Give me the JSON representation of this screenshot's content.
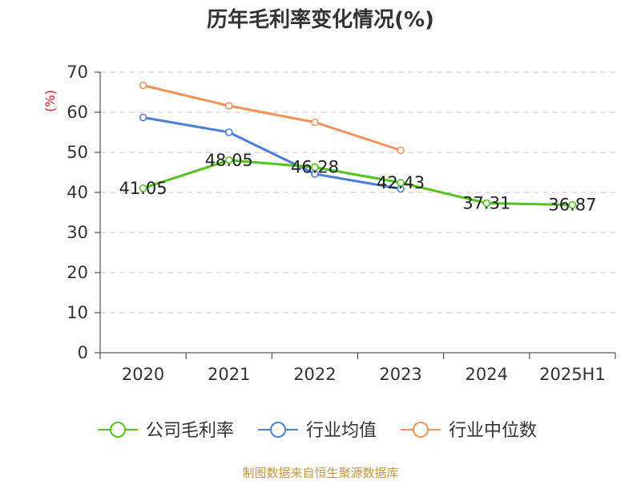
{
  "chart_data": {
    "type": "line",
    "title": "历年毛利率变化情况(%)",
    "ylabel": "(%)",
    "ylabel_color": "#e0141e",
    "categories": [
      "2020",
      "2021",
      "2022",
      "2023",
      "2024",
      "2025H1"
    ],
    "ylim": [
      0,
      70
    ],
    "yticks": [
      0,
      10,
      20,
      30,
      40,
      50,
      60,
      70
    ],
    "grid": true,
    "legend_position": "bottom",
    "series": [
      {
        "name": "公司毛利率",
        "color": "#52c41a",
        "values": [
          41.05,
          48.05,
          46.28,
          42.43,
          37.31,
          36.87
        ],
        "labels": [
          "41.05",
          "48.05",
          "46.28",
          "42.43",
          "37.31",
          "36.87"
        ]
      },
      {
        "name": "行业均值",
        "color": "#4a7fdc",
        "values": [
          58.7,
          55.0,
          44.6,
          40.9,
          null,
          null
        ]
      },
      {
        "name": "行业中位数",
        "color": "#f79158",
        "values": [
          66.7,
          61.6,
          57.5,
          50.5,
          null,
          null
        ]
      }
    ]
  },
  "source": {
    "text": "制图数据来自恒生聚源数据库",
    "color": "#c8963e"
  }
}
